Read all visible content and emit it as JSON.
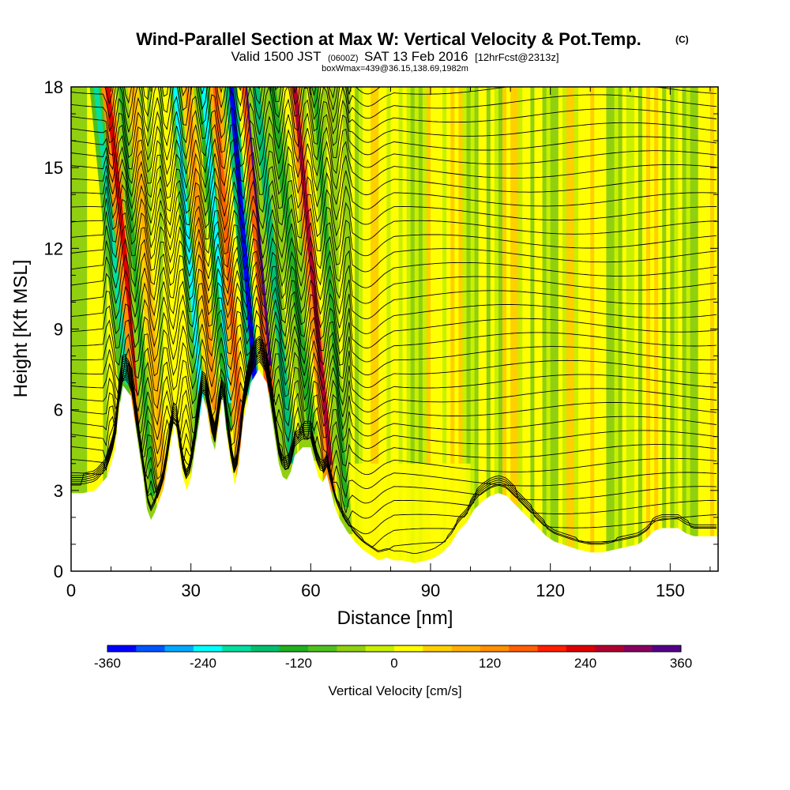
{
  "chart_data": {
    "type": "heatmap",
    "title": "Wind-Parallel Section at Max W: Vertical Velocity & Pot.Temp.",
    "title_unit": "(C)",
    "subtitle_prefix": "Valid 1500 JST",
    "subtitle_zulu": "(0600Z)",
    "subtitle_date": "SAT 13 Feb 2016",
    "subtitle_fcst": "[12hrFcst@2313z]",
    "subtitle2": "boxWmax=439@36.15,138.69,1982m",
    "xlabel": "Distance [nm]",
    "ylabel": "Height [Kft MSL]",
    "xlim": [
      0,
      162
    ],
    "ylim": [
      0,
      18
    ],
    "x_ticks": [
      0,
      30,
      60,
      90,
      120,
      150
    ],
    "y_ticks": [
      0,
      3,
      6,
      9,
      12,
      15,
      18
    ],
    "colorbar": {
      "label": "Vertical Velocity [cm/s]",
      "ticks": [
        -360,
        -240,
        -120,
        0,
        120,
        240,
        360
      ],
      "min": -360,
      "max": 360,
      "colors": [
        "#0000ff",
        "#0055ff",
        "#00aaff",
        "#00ffff",
        "#00e0a0",
        "#00c070",
        "#20b020",
        "#50c020",
        "#90d010",
        "#c8f000",
        "#ffff00",
        "#ffd000",
        "#ffb000",
        "#ff9000",
        "#ff6000",
        "#ff2000",
        "#dd0000",
        "#b00030",
        "#880060",
        "#550088"
      ]
    },
    "terrain_kft": [
      [
        0,
        2.9
      ],
      [
        3,
        2.9
      ],
      [
        6,
        3.0
      ],
      [
        9,
        3.5
      ],
      [
        11,
        4.5
      ],
      [
        12,
        6.0
      ],
      [
        13,
        6.9
      ],
      [
        15,
        6.5
      ],
      [
        16,
        5.5
      ],
      [
        17,
        4.5
      ],
      [
        18,
        3.5
      ],
      [
        19,
        2.3
      ],
      [
        20,
        1.9
      ],
      [
        21,
        2.2
      ],
      [
        23,
        3.0
      ],
      [
        24,
        3.8
      ],
      [
        25,
        4.8
      ],
      [
        26,
        5.5
      ],
      [
        27,
        4.5
      ],
      [
        28,
        3.5
      ],
      [
        29,
        3.0
      ],
      [
        30,
        3.5
      ],
      [
        31,
        4.5
      ],
      [
        32,
        5.5
      ],
      [
        33,
        6.5
      ],
      [
        34,
        6.0
      ],
      [
        35,
        5.0
      ],
      [
        36,
        4.5
      ],
      [
        37,
        5.5
      ],
      [
        38,
        6.5
      ],
      [
        39,
        5.0
      ],
      [
        40,
        4.0
      ],
      [
        41,
        3.2
      ],
      [
        42,
        4.0
      ],
      [
        43,
        5.5
      ],
      [
        45,
        7.0
      ],
      [
        47,
        7.5
      ],
      [
        49,
        7.0
      ],
      [
        50,
        6.0
      ],
      [
        51,
        5.0
      ],
      [
        52,
        4.0
      ],
      [
        53,
        3.5
      ],
      [
        54,
        3.4
      ],
      [
        55,
        3.7
      ],
      [
        56,
        4.3
      ],
      [
        58,
        4.6
      ],
      [
        60,
        4.6
      ],
      [
        61,
        4.0
      ],
      [
        62,
        3.5
      ],
      [
        63,
        3.3
      ],
      [
        64,
        3.6
      ],
      [
        65,
        3.0
      ],
      [
        66,
        2.4
      ],
      [
        67,
        2.0
      ],
      [
        69,
        1.5
      ],
      [
        71,
        1.1
      ],
      [
        73,
        0.8
      ],
      [
        75,
        0.6
      ],
      [
        77,
        0.4
      ],
      [
        79,
        0.5
      ],
      [
        81,
        0.4
      ],
      [
        83,
        0.4
      ],
      [
        86,
        0.3
      ],
      [
        89,
        0.4
      ],
      [
        91,
        0.5
      ],
      [
        93,
        0.7
      ],
      [
        95,
        1.0
      ],
      [
        97,
        1.5
      ],
      [
        99,
        1.8
      ],
      [
        101,
        2.3
      ],
      [
        103,
        2.6
      ],
      [
        105,
        2.8
      ],
      [
        107,
        2.9
      ],
      [
        109,
        2.8
      ],
      [
        111,
        2.5
      ],
      [
        113,
        2.2
      ],
      [
        115,
        1.9
      ],
      [
        117,
        1.6
      ],
      [
        119,
        1.3
      ],
      [
        121,
        1.1
      ],
      [
        123,
        1.0
      ],
      [
        125,
        0.9
      ],
      [
        127,
        0.8
      ],
      [
        130,
        0.7
      ],
      [
        133,
        0.7
      ],
      [
        136,
        0.8
      ],
      [
        139,
        0.9
      ],
      [
        142,
        1.0
      ],
      [
        144,
        1.2
      ],
      [
        146,
        1.5
      ],
      [
        148,
        1.6
      ],
      [
        152,
        1.6
      ],
      [
        154,
        1.4
      ],
      [
        156,
        1.3
      ],
      [
        162,
        1.3
      ]
    ],
    "shear_bands": [
      {
        "x": 12.5,
        "slant": 8,
        "w": 3.2,
        "w_value": -200
      },
      {
        "x": 15.5,
        "slant": 8,
        "w": 3.0,
        "w_value": 250
      },
      {
        "x": 19.0,
        "slant": 8,
        "w": 2.8,
        "w_value": -120
      },
      {
        "x": 22.0,
        "slant": 8,
        "w": 2.8,
        "w_value": 100
      },
      {
        "x": 31.5,
        "slant": 7,
        "w": 3.0,
        "w_value": -220
      },
      {
        "x": 34.5,
        "slant": 7,
        "w": 3.0,
        "w_value": 130
      },
      {
        "x": 38.5,
        "slant": 7,
        "w": 3.0,
        "w_value": -250
      },
      {
        "x": 41.5,
        "slant": 7,
        "w": 3.0,
        "w_value": 160
      },
      {
        "x": 44.5,
        "slant": 6,
        "w": 3.0,
        "w_value": -330
      },
      {
        "x": 48.5,
        "slant": 6,
        "w": 3.5,
        "w_value": 360
      },
      {
        "x": 53.0,
        "slant": 9,
        "w": 4.5,
        "w_value": -160
      },
      {
        "x": 58.0,
        "slant": 10,
        "w": 4.5,
        "w_value": -120
      },
      {
        "x": 63.5,
        "slant": 9,
        "w": 2.8,
        "w_value": 260
      },
      {
        "x": 67.5,
        "slant": 8,
        "w": 3.0,
        "w_value": -130
      }
    ],
    "theta_lines": 36
  }
}
